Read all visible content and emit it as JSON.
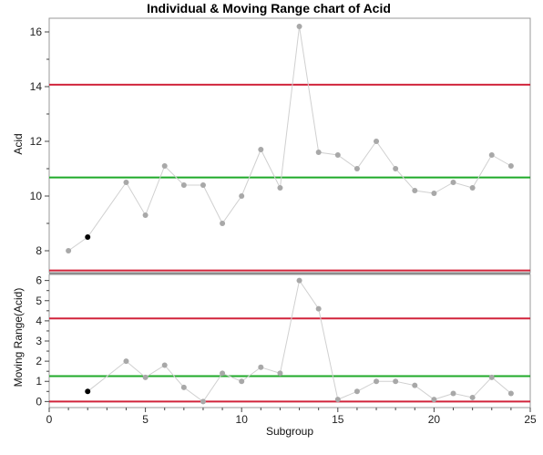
{
  "chart_data": [
    {
      "type": "line",
      "title": "Individual & Moving Range chart of Acid",
      "ylabel": "Acid",
      "xlabel": "",
      "xlim": [
        0,
        25
      ],
      "ylim": [
        7.2,
        16.5
      ],
      "yticks": [
        8,
        10,
        12,
        14,
        16
      ],
      "grid": false,
      "legend": "none",
      "series": [
        {
          "x": [
            1,
            2,
            4,
            5,
            6,
            7,
            8,
            9,
            10,
            11,
            12,
            13,
            14,
            15,
            16,
            17,
            18,
            19,
            20,
            21,
            22,
            23,
            24
          ],
          "values": [
            8.0,
            8.5,
            10.5,
            9.3,
            11.1,
            10.4,
            10.4,
            9.0,
            10.0,
            11.7,
            10.3,
            16.2,
            11.6,
            11.5,
            11.0,
            12.0,
            11.0,
            10.2,
            10.1,
            10.5,
            10.3,
            11.5,
            11.1
          ],
          "highlighted_x": 2
        }
      ],
      "reference_lines": {
        "ucl": 14.07,
        "center": 10.68,
        "lcl": 7.28
      }
    },
    {
      "type": "line",
      "title": "",
      "ylabel": "Moving Range(Acid)",
      "xlabel": "Subgroup",
      "xlim": [
        0,
        25
      ],
      "ylim": [
        -0.3,
        6.3
      ],
      "yticks": [
        0,
        1,
        2,
        3,
        4,
        5,
        6
      ],
      "xticks": [
        0,
        5,
        10,
        15,
        20,
        25
      ],
      "grid": false,
      "legend": "none",
      "series": [
        {
          "x": [
            2,
            4,
            5,
            6,
            7,
            8,
            9,
            10,
            11,
            12,
            13,
            14,
            15,
            16,
            17,
            18,
            19,
            20,
            21,
            22,
            23,
            24
          ],
          "values": [
            0.5,
            2.0,
            1.2,
            1.8,
            0.7,
            0.0,
            1.4,
            1.0,
            1.7,
            1.4,
            6.0,
            4.6,
            0.1,
            0.5,
            1.0,
            1.0,
            0.8,
            0.1,
            0.4,
            0.2,
            1.2,
            0.4
          ],
          "highlighted_x": 2
        }
      ],
      "reference_lines": {
        "ucl": 4.12,
        "center": 1.26,
        "lcl": 0.0
      }
    }
  ],
  "colors": {
    "limit_line": "#d1243b",
    "center_line": "#1faa29",
    "series_line": "#d0d0d0",
    "marker": "#a8a8a8",
    "highlight_marker": "#000000",
    "separator": "#888888"
  }
}
